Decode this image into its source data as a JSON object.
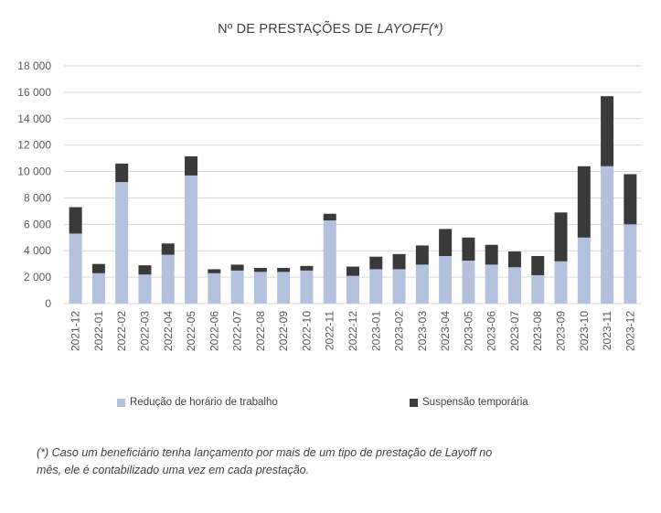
{
  "chart_data": {
    "type": "bar",
    "stacked": true,
    "title_prefix": "Nº DE PRESTAÇÕES DE ",
    "title_emphasis": "LAYOFF",
    "title_suffix": "(*)",
    "xlabel": "",
    "ylabel": "",
    "ylim": [
      0,
      18000
    ],
    "yticks": [
      0,
      2000,
      4000,
      6000,
      8000,
      10000,
      12000,
      14000,
      16000,
      18000
    ],
    "ytick_labels": [
      "0",
      "2 000",
      "4 000",
      "6 000",
      "8 000",
      "10 000",
      "12 000",
      "14 000",
      "16 000",
      "18 000"
    ],
    "grid": true,
    "legend_position": "bottom",
    "categories": [
      "2021-12",
      "2022-01",
      "2022-02",
      "2022-03",
      "2022-04",
      "2022-05",
      "2022-06",
      "2022-07",
      "2022-08",
      "2022-09",
      "2022-10",
      "2022-11",
      "2022-12",
      "2023-01",
      "2023-02",
      "2023-03",
      "2023-04",
      "2023-05",
      "2023-06",
      "2023-07",
      "2023-08",
      "2023-09",
      "2023-10",
      "2023-11",
      "2023-12"
    ],
    "series": [
      {
        "name": "Redução de horário de trabalho",
        "color": "#b4c1de",
        "values": [
          5300,
          2300,
          9200,
          2200,
          3700,
          9700,
          2300,
          2500,
          2400,
          2400,
          2500,
          6300,
          2100,
          2600,
          2600,
          2950,
          3600,
          3250,
          2950,
          2750,
          2150,
          3200,
          5000,
          10400,
          6000
        ]
      },
      {
        "name": "Suspensão temporária",
        "color": "#3a3a3a",
        "values": [
          2000,
          700,
          1400,
          700,
          850,
          1450,
          300,
          450,
          300,
          300,
          350,
          500,
          700,
          950,
          1150,
          1450,
          2050,
          1750,
          1500,
          1200,
          1450,
          3700,
          5400,
          5300,
          3800
        ]
      }
    ]
  },
  "footnote": {
    "line1": "(*) Caso um beneficiário tenha lançamento por mais de um tipo de prestação de Layoff no",
    "line2": "mês, ele é contabilizado uma vez em cada prestação."
  }
}
